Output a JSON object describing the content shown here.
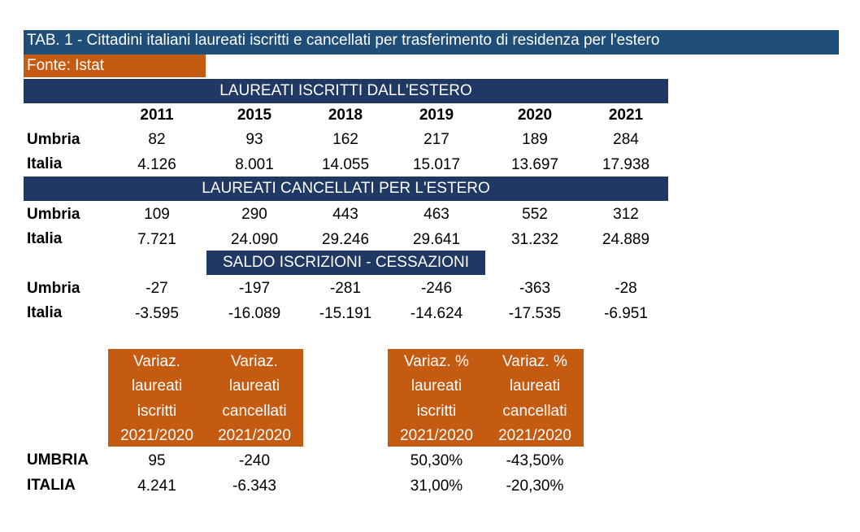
{
  "title": "TAB. 1 - Cittadini italiani laureati iscritti e cancellati per trasferimento di residenza per l'estero",
  "source": "Fonte: Istat",
  "years": [
    "2011",
    "2015",
    "2018",
    "2019",
    "2020",
    "2021"
  ],
  "sections": [
    {
      "heading": "LAUREATI ISCRITTI DALL'ESTERO",
      "rows": [
        {
          "label": "Umbria",
          "values": [
            "82",
            "93",
            "162",
            "217",
            "189",
            "284"
          ]
        },
        {
          "label": "Italia",
          "values": [
            "4.126",
            "8.001",
            "14.055",
            "15.017",
            "13.697",
            "17.938"
          ]
        }
      ]
    },
    {
      "heading": "LAUREATI CANCELLATI PER L'ESTERO",
      "rows": [
        {
          "label": "Umbria",
          "values": [
            "109",
            "290",
            "443",
            "463",
            "552",
            "312"
          ]
        },
        {
          "label": "Italia",
          "values": [
            "7.721",
            "24.090",
            "29.246",
            "29.641",
            "31.232",
            "24.889"
          ]
        }
      ]
    },
    {
      "heading": "SALDO ISCRIZIONI - CESSAZIONI",
      "rows": [
        {
          "label": "Umbria",
          "values": [
            "-27",
            "-197",
            "-281",
            "-246",
            "-363",
            "-28"
          ]
        },
        {
          "label": "Italia",
          "values": [
            "-3.595",
            "-16.089",
            "-15.191",
            "-14.624",
            "-17.535",
            "-6.951"
          ]
        }
      ]
    }
  ],
  "variation_abs": {
    "headers": [
      [
        "Variaz.",
        "laureati",
        "iscritti",
        "2021/2020"
      ],
      [
        "Variaz.",
        "laureati",
        "cancellati",
        "2021/2020"
      ]
    ],
    "rows": [
      {
        "label": "UMBRIA",
        "values": [
          "95",
          "-240"
        ]
      },
      {
        "label": "ITALIA",
        "values": [
          "4.241",
          "-6.343"
        ]
      }
    ]
  },
  "variation_pct": {
    "headers": [
      [
        "Variaz. %",
        "laureati",
        "iscritti",
        "2021/2020"
      ],
      [
        "Variaz. %",
        "laureati",
        "cancellati",
        "2021/2020"
      ]
    ],
    "rows": [
      {
        "values": [
          "50,30%",
          "-43,50%"
        ]
      },
      {
        "values": [
          "31,00%",
          "-20,30%"
        ]
      }
    ]
  },
  "colors": {
    "title_bar": "#1f4e79",
    "section_band": "#1f3864",
    "accent_orange": "#c55a11"
  }
}
